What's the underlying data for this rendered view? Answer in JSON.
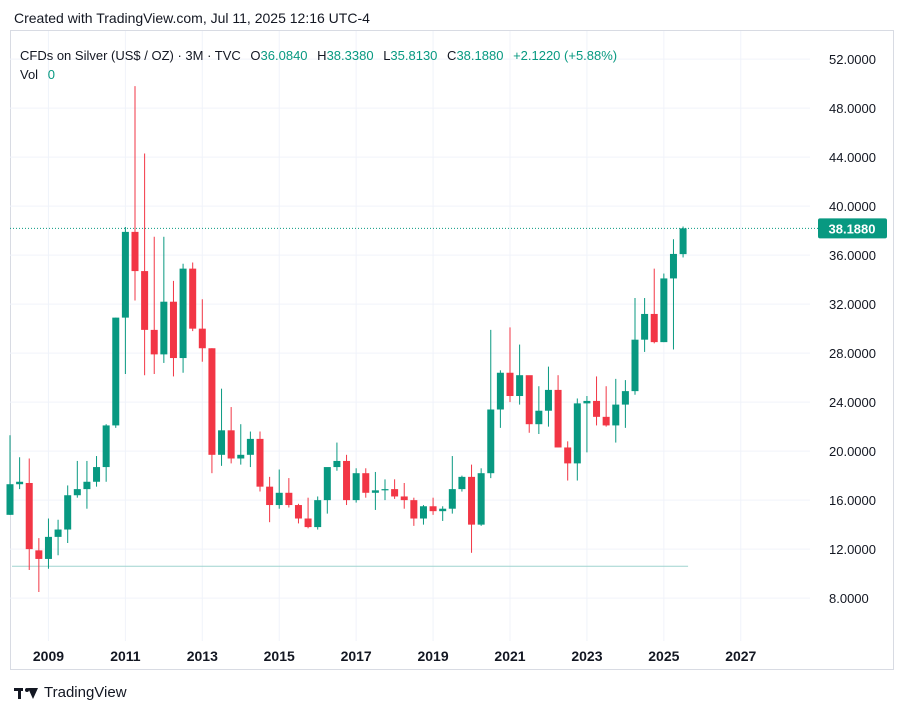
{
  "header": {
    "created_text": "Created with TradingView.com, Jul 11, 2025 12:16 UTC-4"
  },
  "legend": {
    "symbol": "CFDs on Silver (US$ / OZ) · 3M · TVC",
    "open_label": "O",
    "open_value": "36.0840",
    "high_label": "H",
    "high_value": "38.3380",
    "low_label": "L",
    "low_value": "35.8130",
    "close_label": "C",
    "close_value": "38.1880",
    "change": "+2.1220 (+5.88%)",
    "vol_label": "Vol",
    "vol_value": "0"
  },
  "footer": {
    "brand": "TradingView"
  },
  "colors": {
    "up": "#089981",
    "down": "#f23645",
    "price_line": "#089981",
    "grid": "#f0f3fa",
    "text": "#131722"
  },
  "chart_data": {
    "type": "candlestick",
    "x_ticks": [
      "2009",
      "2011",
      "2013",
      "2015",
      "2017",
      "2019",
      "2021",
      "2023",
      "2025",
      "2027"
    ],
    "y_ticks": [
      "8.0000",
      "12.0000",
      "16.0000",
      "20.0000",
      "24.0000",
      "28.0000",
      "32.0000",
      "36.0000",
      "40.0000",
      "44.0000",
      "48.0000",
      "52.0000"
    ],
    "ylim": [
      4.5,
      54.3
    ],
    "xlim": [
      2008.0,
      2028.8
    ],
    "last_price_label": "38.1880",
    "last_price": 38.188,
    "reference_line": 10.6,
    "series": [
      {
        "t": 2008.0,
        "o": 14.8,
        "h": 21.3,
        "l": 14.8,
        "c": 17.3
      },
      {
        "t": 2008.25,
        "o": 17.3,
        "h": 19.5,
        "l": 16.9,
        "c": 17.5
      },
      {
        "t": 2008.5,
        "o": 17.4,
        "h": 19.4,
        "l": 10.3,
        "c": 12.0
      },
      {
        "t": 2008.75,
        "o": 11.9,
        "h": 12.9,
        "l": 8.5,
        "c": 11.2
      },
      {
        "t": 2009.0,
        "o": 11.2,
        "h": 14.5,
        "l": 10.4,
        "c": 13.0
      },
      {
        "t": 2009.25,
        "o": 13.0,
        "h": 14.4,
        "l": 11.5,
        "c": 13.6
      },
      {
        "t": 2009.5,
        "o": 13.6,
        "h": 17.2,
        "l": 12.5,
        "c": 16.4
      },
      {
        "t": 2009.75,
        "o": 16.4,
        "h": 19.2,
        "l": 16.2,
        "c": 16.9
      },
      {
        "t": 2010.0,
        "o": 16.9,
        "h": 19.2,
        "l": 15.3,
        "c": 17.5
      },
      {
        "t": 2010.25,
        "o": 17.5,
        "h": 19.6,
        "l": 17.1,
        "c": 18.7
      },
      {
        "t": 2010.5,
        "o": 18.7,
        "h": 22.2,
        "l": 17.5,
        "c": 22.1
      },
      {
        "t": 2010.75,
        "o": 22.1,
        "h": 30.9,
        "l": 21.9,
        "c": 30.9
      },
      {
        "t": 2011.0,
        "o": 30.9,
        "h": 38.3,
        "l": 26.3,
        "c": 37.9
      },
      {
        "t": 2011.25,
        "o": 37.9,
        "h": 49.8,
        "l": 32.3,
        "c": 34.7
      },
      {
        "t": 2011.5,
        "o": 34.7,
        "h": 44.3,
        "l": 26.2,
        "c": 29.9
      },
      {
        "t": 2011.75,
        "o": 29.9,
        "h": 37.5,
        "l": 26.3,
        "c": 27.9
      },
      {
        "t": 2012.0,
        "o": 27.9,
        "h": 37.5,
        "l": 27.2,
        "c": 32.2
      },
      {
        "t": 2012.25,
        "o": 32.2,
        "h": 33.9,
        "l": 26.1,
        "c": 27.6
      },
      {
        "t": 2012.5,
        "o": 27.6,
        "h": 35.3,
        "l": 26.4,
        "c": 34.9
      },
      {
        "t": 2012.75,
        "o": 34.9,
        "h": 35.4,
        "l": 29.8,
        "c": 30.0
      },
      {
        "t": 2013.0,
        "o": 30.0,
        "h": 32.4,
        "l": 27.3,
        "c": 28.4
      },
      {
        "t": 2013.25,
        "o": 28.4,
        "h": 28.4,
        "l": 18.2,
        "c": 19.7
      },
      {
        "t": 2013.5,
        "o": 19.7,
        "h": 25.1,
        "l": 18.8,
        "c": 21.7
      },
      {
        "t": 2013.75,
        "o": 21.7,
        "h": 23.6,
        "l": 19.0,
        "c": 19.4
      },
      {
        "t": 2014.0,
        "o": 19.4,
        "h": 22.2,
        "l": 18.9,
        "c": 19.7
      },
      {
        "t": 2014.25,
        "o": 19.7,
        "h": 21.6,
        "l": 18.7,
        "c": 21.0
      },
      {
        "t": 2014.5,
        "o": 21.0,
        "h": 21.6,
        "l": 16.7,
        "c": 17.1
      },
      {
        "t": 2014.75,
        "o": 17.1,
        "h": 17.9,
        "l": 14.2,
        "c": 15.6
      },
      {
        "t": 2015.0,
        "o": 15.6,
        "h": 18.5,
        "l": 15.3,
        "c": 16.6
      },
      {
        "t": 2015.25,
        "o": 16.6,
        "h": 17.8,
        "l": 15.4,
        "c": 15.6
      },
      {
        "t": 2015.5,
        "o": 15.6,
        "h": 15.7,
        "l": 14.1,
        "c": 14.5
      },
      {
        "t": 2015.75,
        "o": 14.5,
        "h": 16.2,
        "l": 13.7,
        "c": 13.8
      },
      {
        "t": 2016.0,
        "o": 13.8,
        "h": 16.3,
        "l": 13.6,
        "c": 16.0
      },
      {
        "t": 2016.25,
        "o": 16.0,
        "h": 18.6,
        "l": 14.9,
        "c": 18.7
      },
      {
        "t": 2016.5,
        "o": 18.7,
        "h": 20.7,
        "l": 18.4,
        "c": 19.2
      },
      {
        "t": 2016.75,
        "o": 19.2,
        "h": 19.7,
        "l": 15.6,
        "c": 16.0
      },
      {
        "t": 2017.0,
        "o": 16.0,
        "h": 18.6,
        "l": 15.8,
        "c": 18.2
      },
      {
        "t": 2017.25,
        "o": 18.2,
        "h": 18.6,
        "l": 16.2,
        "c": 16.6
      },
      {
        "t": 2017.5,
        "o": 16.6,
        "h": 18.3,
        "l": 15.2,
        "c": 16.8
      },
      {
        "t": 2017.75,
        "o": 16.8,
        "h": 17.7,
        "l": 16.0,
        "c": 16.9
      },
      {
        "t": 2018.0,
        "o": 16.9,
        "h": 17.7,
        "l": 16.1,
        "c": 16.3
      },
      {
        "t": 2018.25,
        "o": 16.3,
        "h": 17.4,
        "l": 15.3,
        "c": 16.0
      },
      {
        "t": 2018.5,
        "o": 16.0,
        "h": 16.2,
        "l": 13.9,
        "c": 14.5
      },
      {
        "t": 2018.75,
        "o": 14.5,
        "h": 15.6,
        "l": 14.0,
        "c": 15.5
      },
      {
        "t": 2019.0,
        "o": 15.5,
        "h": 16.2,
        "l": 14.8,
        "c": 15.1
      },
      {
        "t": 2019.25,
        "o": 15.1,
        "h": 15.5,
        "l": 14.3,
        "c": 15.3
      },
      {
        "t": 2019.5,
        "o": 15.3,
        "h": 19.6,
        "l": 14.9,
        "c": 16.9
      },
      {
        "t": 2019.75,
        "o": 16.9,
        "h": 18.0,
        "l": 16.7,
        "c": 17.9
      },
      {
        "t": 2020.0,
        "o": 17.9,
        "h": 18.9,
        "l": 11.7,
        "c": 14.0
      },
      {
        "t": 2020.25,
        "o": 14.0,
        "h": 18.6,
        "l": 13.9,
        "c": 18.2
      },
      {
        "t": 2020.5,
        "o": 18.2,
        "h": 29.9,
        "l": 17.8,
        "c": 23.4
      },
      {
        "t": 2020.75,
        "o": 23.4,
        "h": 26.6,
        "l": 21.9,
        "c": 26.4
      },
      {
        "t": 2021.0,
        "o": 26.4,
        "h": 30.1,
        "l": 24.0,
        "c": 24.5
      },
      {
        "t": 2021.25,
        "o": 24.5,
        "h": 28.7,
        "l": 23.8,
        "c": 26.2
      },
      {
        "t": 2021.5,
        "o": 26.2,
        "h": 26.0,
        "l": 21.5,
        "c": 22.2
      },
      {
        "t": 2021.75,
        "o": 22.2,
        "h": 25.3,
        "l": 21.4,
        "c": 23.3
      },
      {
        "t": 2022.0,
        "o": 23.3,
        "h": 26.9,
        "l": 22.0,
        "c": 25.0
      },
      {
        "t": 2022.25,
        "o": 25.0,
        "h": 26.2,
        "l": 20.3,
        "c": 20.3
      },
      {
        "t": 2022.5,
        "o": 20.3,
        "h": 20.8,
        "l": 17.6,
        "c": 19.0
      },
      {
        "t": 2022.75,
        "o": 19.0,
        "h": 24.3,
        "l": 17.6,
        "c": 23.9
      },
      {
        "t": 2023.0,
        "o": 23.9,
        "h": 24.5,
        "l": 19.9,
        "c": 24.1
      },
      {
        "t": 2023.25,
        "o": 24.1,
        "h": 26.1,
        "l": 22.1,
        "c": 22.8
      },
      {
        "t": 2023.5,
        "o": 22.8,
        "h": 25.3,
        "l": 22.0,
        "c": 22.1
      },
      {
        "t": 2023.75,
        "o": 22.1,
        "h": 25.9,
        "l": 20.7,
        "c": 23.8
      },
      {
        "t": 2024.0,
        "o": 23.8,
        "h": 25.8,
        "l": 21.9,
        "c": 24.9
      },
      {
        "t": 2024.25,
        "o": 24.9,
        "h": 32.5,
        "l": 24.6,
        "c": 29.1
      },
      {
        "t": 2024.5,
        "o": 29.1,
        "h": 32.5,
        "l": 28.1,
        "c": 31.2
      },
      {
        "t": 2024.75,
        "o": 31.2,
        "h": 34.9,
        "l": 28.8,
        "c": 28.9
      },
      {
        "t": 2025.0,
        "o": 28.9,
        "h": 34.5,
        "l": 28.9,
        "c": 34.1
      },
      {
        "t": 2025.25,
        "o": 34.1,
        "h": 37.3,
        "l": 28.3,
        "c": 36.1
      },
      {
        "t": 2025.5,
        "o": 36.084,
        "h": 38.338,
        "l": 35.813,
        "c": 38.188
      }
    ]
  }
}
